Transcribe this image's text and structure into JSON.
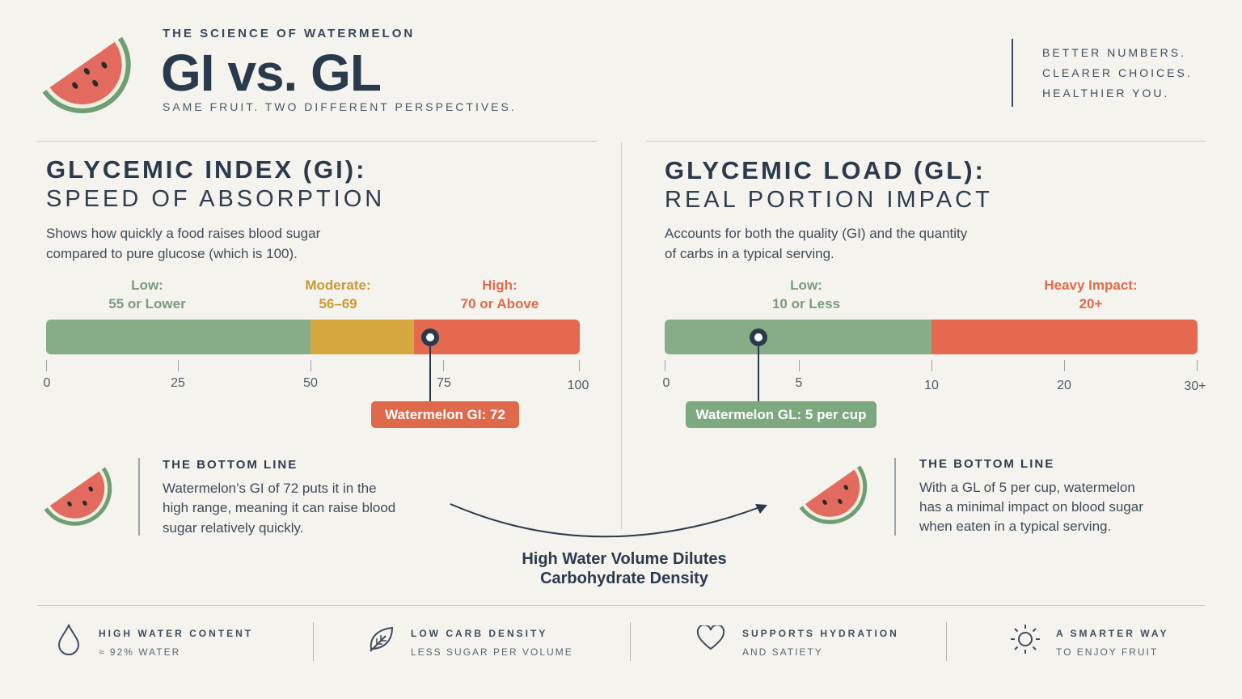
{
  "header": {
    "kicker": "THE SCIENCE OF WATERMELON",
    "title": "GI vs. GL",
    "subtitle": "SAME FRUIT. TWO DIFFERENT PERSPECTIVES.",
    "tagline": [
      "BETTER NUMBERS.",
      "CLEARER CHOICES.",
      "HEALTHIER YOU."
    ]
  },
  "gi": {
    "heading": "GLYCEMIC INDEX (GI):",
    "subheading": "SPEED OF ABSORPTION",
    "description": [
      "Shows how quickly a food raises blood sugar",
      "compared to pure glucose (which is 100)."
    ],
    "bands": [
      {
        "title": "Low:",
        "range": "55 or Lower",
        "color": "#87ad87"
      },
      {
        "title": "Moderate:",
        "range": "56–69",
        "color": "#d5a83f"
      },
      {
        "title": "High:",
        "range": "70 or Above",
        "color": "#e4694f"
      }
    ],
    "ticks": [
      "0",
      "25",
      "50",
      "75",
      "100"
    ],
    "value": 72,
    "value_label": "Watermelon GI: 72",
    "bottom_line": {
      "heading": "THE BOTTOM LINE",
      "text": [
        "Watermelon’s GI of 72 puts it in the",
        "high range, meaning it can raise blood",
        "sugar relatively quickly."
      ]
    }
  },
  "gl": {
    "heading": "GLYCEMIC LOAD (GL):",
    "subheading": "REAL PORTION IMPACT",
    "description": [
      "Accounts for both the quality (GI) and the quantity",
      "of carbs in a typical serving."
    ],
    "bands": [
      {
        "title": "Low:",
        "range": "10 or Less",
        "color": "#87ad87"
      },
      {
        "title": "Heavy Impact:",
        "range": "20+",
        "color": "#e4694f"
      }
    ],
    "ticks": [
      "0",
      "5",
      "10",
      "20",
      "30+"
    ],
    "value": 5,
    "value_label": "Watermelon GL: 5 per cup",
    "bottom_line": {
      "heading": "THE BOTTOM LINE",
      "text": [
        "With a GL of 5 per cup, watermelon",
        "has a minimal impact on blood sugar",
        "when eaten in a typical serving."
      ]
    }
  },
  "callout": [
    "High Water Volume Dilutes",
    "Carbohydrate Density"
  ],
  "footer": [
    {
      "icon": "water-drop-icon",
      "title": "HIGH WATER CONTENT",
      "sub": "≈ 92% WATER"
    },
    {
      "icon": "leaf-icon",
      "title": "LOW CARB DENSITY",
      "sub": "LESS SUGAR PER VOLUME"
    },
    {
      "icon": "heart-icon",
      "title": "SUPPORTS HYDRATION",
      "sub": "AND SATIETY"
    },
    {
      "icon": "sun-icon",
      "title": "A SMARTER WAY",
      "sub": "TO ENJOY FRUIT"
    }
  ],
  "colors": {
    "navy": "#2a3a4d",
    "green": "#87ad87",
    "gold": "#d5a83f",
    "red": "#e4694f",
    "background": "#f5f3ee"
  }
}
